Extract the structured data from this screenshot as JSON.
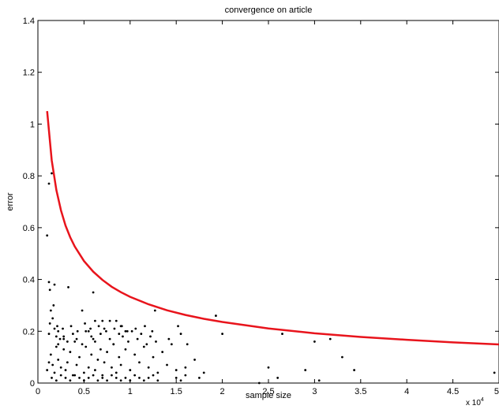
{
  "chart_data": {
    "type": "scatter",
    "title": "convergence on article",
    "xlabel": "sample size",
    "ylabel": "error",
    "x_multiplier_label": "x 10",
    "x_multiplier_exponent": "4",
    "xlim": [
      0,
      5
    ],
    "ylim": [
      0,
      1.4
    ],
    "xticks": [
      "0",
      "0.5",
      "1",
      "1.5",
      "2",
      "2.5",
      "3",
      "3.5",
      "4",
      "4.5",
      "5"
    ],
    "yticks": [
      "0",
      "0.2",
      "0.4",
      "0.6",
      "0.8",
      "1",
      "1.2",
      "1.4"
    ],
    "grid": false,
    "legend": "none",
    "colors": {
      "curve": "#e8141c",
      "points": "#000000",
      "axes": "#000000"
    },
    "curve": {
      "x": [
        0.1,
        0.15,
        0.2,
        0.25,
        0.3,
        0.35,
        0.4,
        0.5,
        0.6,
        0.7,
        0.8,
        0.9,
        1.0,
        1.2,
        1.4,
        1.6,
        1.8,
        2.0,
        2.5,
        3.0,
        3.5,
        4.0,
        4.5,
        5.0
      ],
      "y": [
        1.05,
        0.86,
        0.745,
        0.667,
        0.608,
        0.563,
        0.527,
        0.471,
        0.43,
        0.398,
        0.372,
        0.351,
        0.333,
        0.304,
        0.281,
        0.263,
        0.248,
        0.236,
        0.211,
        0.192,
        0.178,
        0.167,
        0.157,
        0.149
      ]
    },
    "points": {
      "x": [
        0.1,
        0.12,
        0.12,
        0.13,
        0.14,
        0.15,
        0.16,
        0.17,
        0.18,
        0.2,
        0.22,
        0.24,
        0.28,
        0.33,
        0.6,
        0.48,
        0.55,
        0.62,
        0.7,
        0.78,
        0.85,
        0.9,
        0.95,
        1.27,
        1.52,
        1.55,
        1.93,
        2.0,
        0.1,
        0.12,
        0.14,
        0.16,
        0.18,
        0.2,
        0.22,
        0.25,
        0.28,
        0.3,
        0.32,
        0.35,
        0.38,
        0.4,
        0.42,
        0.45,
        0.5,
        0.52,
        0.55,
        0.58,
        0.6,
        0.62,
        0.65,
        0.68,
        0.7,
        0.72,
        0.75,
        0.8,
        0.82,
        0.85,
        0.88,
        0.9,
        0.95,
        1.0,
        1.05,
        1.1,
        1.15,
        1.2,
        1.25,
        1.3,
        1.35,
        1.4,
        1.45,
        1.5,
        1.6,
        1.7,
        1.8,
        0.15,
        0.2,
        0.25,
        0.3,
        0.35,
        0.4,
        0.45,
        0.5,
        0.55,
        0.6,
        0.65,
        0.7,
        0.75,
        0.8,
        0.85,
        0.9,
        0.95,
        1.0,
        1.05,
        1.1,
        1.15,
        1.2,
        1.25,
        1.3,
        1.5,
        1.55,
        1.6,
        1.75,
        0.12,
        0.18,
        0.22,
        0.28,
        0.32,
        0.38,
        0.42,
        0.48,
        0.52,
        0.58,
        0.62,
        0.68,
        0.72,
        0.78,
        0.82,
        0.88,
        0.92,
        0.98,
        1.02,
        1.08,
        1.12,
        1.18,
        1.22,
        1.28,
        1.42,
        1.62,
        0.13,
        0.21,
        0.27,
        0.36,
        0.43,
        0.51,
        0.57,
        0.66,
        0.74,
        0.83,
        0.91,
        0.97,
        1.06,
        1.16,
        1.24,
        2.65,
        3.0,
        3.17,
        3.3,
        3.43,
        2.5,
        2.6,
        2.9,
        3.05,
        2.4,
        4.95
      ],
      "y": [
        0.57,
        0.77,
        0.39,
        0.36,
        0.28,
        0.81,
        0.25,
        0.3,
        0.38,
        0.18,
        0.2,
        0.17,
        0.17,
        0.37,
        0.35,
        0.28,
        0.2,
        0.24,
        0.24,
        0.24,
        0.24,
        0.22,
        0.2,
        0.28,
        0.22,
        0.19,
        0.26,
        0.19,
        0.05,
        0.08,
        0.11,
        0.07,
        0.04,
        0.14,
        0.09,
        0.06,
        0.13,
        0.05,
        0.08,
        0.12,
        0.03,
        0.16,
        0.07,
        0.1,
        0.04,
        0.14,
        0.06,
        0.11,
        0.17,
        0.05,
        0.09,
        0.13,
        0.03,
        0.08,
        0.12,
        0.06,
        0.15,
        0.04,
        0.1,
        0.07,
        0.13,
        0.05,
        0.11,
        0.08,
        0.14,
        0.06,
        0.1,
        0.04,
        0.12,
        0.07,
        0.15,
        0.05,
        0.06,
        0.09,
        0.04,
        0.02,
        0.01,
        0.03,
        0.02,
        0.01,
        0.03,
        0.02,
        0.01,
        0.02,
        0.03,
        0.01,
        0.02,
        0.01,
        0.03,
        0.02,
        0.01,
        0.02,
        0.01,
        0.03,
        0.02,
        0.01,
        0.02,
        0.03,
        0.01,
        0.02,
        0.01,
        0.03,
        0.02,
        0.19,
        0.21,
        0.15,
        0.18,
        0.16,
        0.19,
        0.17,
        0.15,
        0.2,
        0.18,
        0.16,
        0.19,
        0.21,
        0.17,
        0.15,
        0.19,
        0.18,
        0.16,
        0.2,
        0.17,
        0.19,
        0.15,
        0.18,
        0.16,
        0.17,
        0.15,
        0.23,
        0.22,
        0.21,
        0.22,
        0.2,
        0.23,
        0.21,
        0.22,
        0.2,
        0.21,
        0.22,
        0.2,
        0.21,
        0.22,
        0.2,
        0.19,
        0.16,
        0.17,
        0.1,
        0.05,
        0.06,
        0.02,
        0.05,
        0.01,
        0.0,
        0.04
      ]
    }
  }
}
